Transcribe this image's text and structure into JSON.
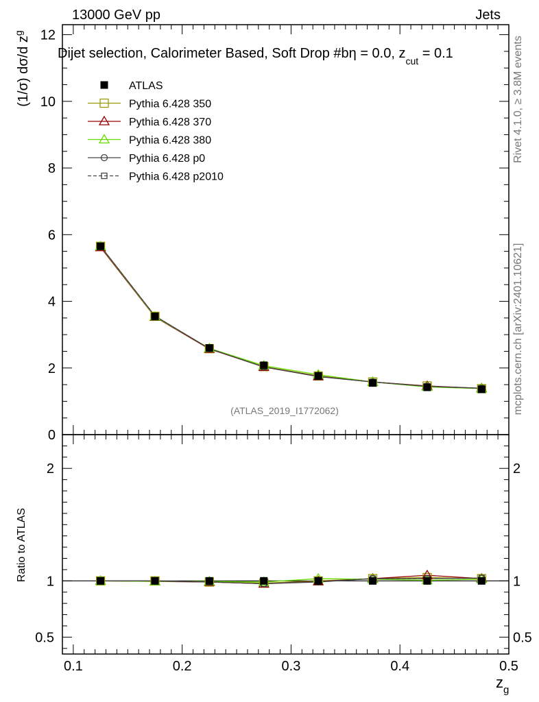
{
  "chart_data": {
    "type": "line",
    "header_left": "13000 GeV pp",
    "header_right": "Jets",
    "title_prefix": "Dijet selection, Calorimeter Based, Soft Drop #b",
    "title_eta": "η = 0.0, z",
    "title_sub": "cut",
    "title_suffix": " = 0.1",
    "ylabel_main": "(1/σ) dσ/d z",
    "ylabel_main_sub": "g",
    "ylabel_ratio": "Ratio to ATLAS",
    "xlabel": "z",
    "xlabel_sub": "g",
    "watermark": "(ATLAS_2019_I1772062)",
    "side_label_1": "Rivet 4.1.0, ≥ 3.8M events",
    "side_label_2": "mcplots.cern.ch [arXiv:2401.10621]",
    "xlim": [
      0.09,
      0.5
    ],
    "ylim_main": [
      0,
      12.3
    ],
    "ylim_ratio": [
      0.35,
      2.3
    ],
    "x_ticks": [
      0.1,
      0.2,
      0.3,
      0.4,
      0.5
    ],
    "x_tick_labels": [
      "0.1",
      "0.2",
      "0.3",
      "0.4",
      "0.5"
    ],
    "y_ticks_main": [
      0,
      2,
      4,
      6,
      8,
      10,
      12
    ],
    "y_tick_labels_main": [
      "0",
      "2",
      "4",
      "6",
      "8",
      "10",
      "12"
    ],
    "y_ticks_ratio": [
      0.5,
      1,
      2
    ],
    "y_tick_labels_ratio": [
      "0.5",
      "1",
      "2"
    ],
    "x": [
      0.125,
      0.175,
      0.225,
      0.275,
      0.325,
      0.375,
      0.425,
      0.475
    ],
    "data": {
      "name": "ATLAS",
      "values": [
        5.65,
        3.55,
        2.6,
        2.08,
        1.76,
        1.55,
        1.42,
        1.36
      ]
    },
    "series": [
      {
        "name": "Pythia 6.428 350",
        "color": "#999900",
        "marker": "square-open",
        "dash": "solid",
        "values": [
          5.65,
          3.55,
          2.58,
          2.04,
          1.76,
          1.58,
          1.46,
          1.38
        ],
        "ratio": [
          1.0,
          1.0,
          0.99,
          0.98,
          1.0,
          1.02,
          1.03,
          1.02
        ]
      },
      {
        "name": "Pythia 6.428 370",
        "color": "#990000",
        "marker": "triangle-open",
        "dash": "solid",
        "values": [
          5.62,
          3.53,
          2.57,
          2.03,
          1.75,
          1.58,
          1.46,
          1.39
        ],
        "ratio": [
          1.0,
          0.995,
          0.99,
          0.975,
          0.995,
          1.02,
          1.05,
          1.02
        ]
      },
      {
        "name": "Pythia 6.428 380",
        "color": "#66dd00",
        "marker": "triangle-open",
        "dash": "solid",
        "values": [
          5.65,
          3.54,
          2.59,
          2.07,
          1.8,
          1.58,
          1.43,
          1.38
        ],
        "ratio": [
          1.0,
          0.995,
          0.995,
          0.99,
          1.02,
          1.015,
          1.005,
          1.015
        ]
      },
      {
        "name": "Pythia 6.428 p0",
        "color": "#444444",
        "marker": "circle-open",
        "dash": "solid",
        "values": [
          5.66,
          3.56,
          2.58,
          2.03,
          1.74,
          1.58,
          1.45,
          1.39
        ],
        "ratio": [
          1.0,
          1.0,
          0.99,
          0.975,
          0.99,
          1.02,
          1.02,
          1.025
        ]
      },
      {
        "name": "Pythia 6.428 p2010",
        "color": "#444444",
        "marker": "square-small-open",
        "dash": "dashed",
        "values": [
          5.66,
          3.56,
          2.58,
          2.03,
          1.75,
          1.58,
          1.45,
          1.39
        ],
        "ratio": [
          1.0,
          1.0,
          0.99,
          0.975,
          0.995,
          1.02,
          1.02,
          1.025
        ]
      }
    ]
  }
}
